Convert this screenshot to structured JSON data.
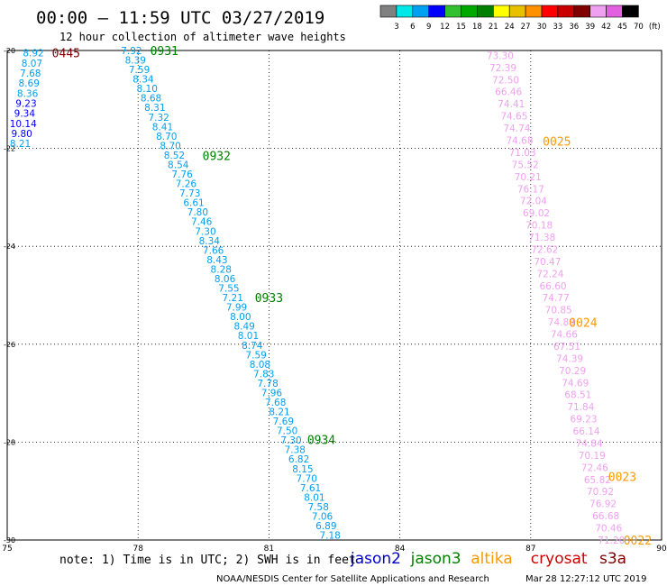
{
  "title": "00:00 – 11:59 UTC 03/27/2019",
  "subtitle": "12 hour collection of altimeter wave heights",
  "color_scale": {
    "colors": [
      "#808080",
      "#00e8e8",
      "#00a0f0",
      "#0000ff",
      "#30c030",
      "#00a800",
      "#008000",
      "#ffff00",
      "#e8c000",
      "#ff9000",
      "#ff0000",
      "#c80000",
      "#800000",
      "#f0a0f0",
      "#e060e0",
      "#000000"
    ],
    "labels": [
      "3",
      "6",
      "9",
      "12",
      "15",
      "18",
      "21",
      "24",
      "27",
      "30",
      "33",
      "36",
      "39",
      "42",
      "45",
      "70",
      "(ft)"
    ]
  },
  "note": "note: 1) Time is in UTC; 2) SWH is in feet",
  "satellite_legend": [
    {
      "name": "jason2",
      "color": "#0000cc"
    },
    {
      "name": "jason3",
      "color": "#008000"
    },
    {
      "name": "altika",
      "color": "#ff9900"
    },
    {
      "name": "cryosat",
      "color": "#cc0000"
    },
    {
      "name": "s3a",
      "color": "#800000"
    }
  ],
  "footer_left": "NOAA/NESDIS Center for Satellite Applications and Research",
  "footer_right": "Mar 28 12:27:12 UTC 2019",
  "chart_data": {
    "type": "scatter",
    "x_ticks": [
      "75",
      "78",
      "81",
      "84",
      "87",
      "90"
    ],
    "y_ticks": [
      "-20",
      "-22",
      "-24",
      "-26",
      "-28",
      "-30"
    ],
    "xlim": [
      75,
      90
    ],
    "ylim": [
      -30,
      -20
    ],
    "grid": true,
    "tracks": [
      {
        "name": "track-0445",
        "lon_start": 75.6,
        "lon_end": 75.3,
        "lat_start": -20.05,
        "lat_end": -21.9,
        "values": [
          "8.92",
          "8.07",
          "7.68",
          "8.69",
          "8.36",
          "9.23",
          "9.34",
          "10.14",
          "9.80",
          "8.21"
        ],
        "colors": [
          "#00a0f0",
          "#00a0f0",
          "#00a0f0",
          "#00a0f0",
          "#00a0f0",
          "#0000ff",
          "#0000ff",
          "#0000ff",
          "#0000ff",
          "#00a0f0"
        ],
        "time_label": "0445",
        "time_lon": 76.35,
        "time_lat": -20.05,
        "time_color": "#800000"
      },
      {
        "name": "track-0931-0934",
        "lon_start": 77.85,
        "lon_end": 82.4,
        "lat_start": -20.0,
        "lat_end": -29.9,
        "values": [
          "7.92",
          "8.39",
          "7.59",
          "8.34",
          "8.10",
          "8.68",
          "8.31",
          "7.32",
          "8.41",
          "8.70",
          "8.70",
          "8.52",
          "8.54",
          "7.76",
          "7.26",
          "7.73",
          "6.61",
          "7.80",
          "7.46",
          "7.30",
          "8.34",
          "7.66",
          "8.43",
          "8.28",
          "8.06",
          "7.55",
          "7.21",
          "7.99",
          "8.00",
          "8.49",
          "8.01",
          "8.74",
          "7.59",
          "8.08",
          "7.83",
          "7.78",
          "7.96",
          "7.68",
          "8.21",
          "7.69",
          "7.50",
          "7.30",
          "7.38",
          "6.82",
          "8.15",
          "7.70",
          "7.61",
          "8.01",
          "7.58",
          "7.06",
          "6.89",
          "7.18"
        ],
        "colors": "#00a0f0",
        "time_labels": [
          {
            "text": "0931",
            "lon": 78.6,
            "lat": -20.0
          },
          {
            "text": "0932",
            "lon": 79.8,
            "lat": -22.15
          },
          {
            "text": "0933",
            "lon": 81.0,
            "lat": -25.05
          },
          {
            "text": "0934",
            "lon": 82.2,
            "lat": -27.95
          }
        ],
        "time_color": "#008000"
      },
      {
        "name": "track-0022-0025",
        "lon_start": 86.3,
        "lon_end": 88.85,
        "lat_start": -20.1,
        "lat_end": -30.0,
        "values": [
          "73.30",
          "72.39",
          "72.50",
          "66.46",
          "74.41",
          "74.65",
          "74.74",
          "74.68",
          "71.03",
          "75.52",
          "70.21",
          "76.17",
          "72.04",
          "69.02",
          "70.18",
          "71.38",
          "72.62",
          "70.47",
          "72.24",
          "66.60",
          "74.77",
          "70.85",
          "74.89",
          "74.66",
          "67.51",
          "74.39",
          "70.29",
          "74.69",
          "68.51",
          "71.84",
          "69.23",
          "66.14",
          "74.84",
          "70.19",
          "72.46",
          "65.82",
          "70.92",
          "76.92",
          "66.68",
          "70.46",
          "71.20"
        ],
        "colors": "#f0a0f0",
        "time_labels": [
          {
            "text": "0025",
            "lon": 87.6,
            "lat": -21.85
          },
          {
            "text": "0024",
            "lon": 88.2,
            "lat": -25.55
          },
          {
            "text": "0023",
            "lon": 89.1,
            "lat": -28.7
          },
          {
            "text": "0022",
            "lon": 89.45,
            "lat": -30.0
          }
        ],
        "time_color": "#ff9900"
      }
    ]
  }
}
